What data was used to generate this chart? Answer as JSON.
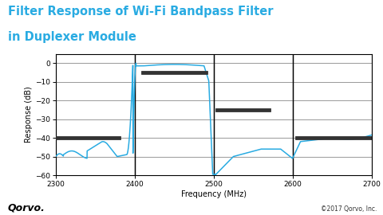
{
  "title_line1": "Filter Response of Wi-Fi Bandpass Filter",
  "title_line2": "in Duplexer Module",
  "title_color": "#29ABE2",
  "title_fontsize": 10.5,
  "xlabel": "Frequency (MHz)",
  "ylabel": "Response (dB)",
  "xlim": [
    2300,
    2700
  ],
  "ylim": [
    -60,
    5
  ],
  "xticks": [
    2300,
    2400,
    2500,
    2600,
    2700
  ],
  "yticks": [
    0,
    -10,
    -20,
    -30,
    -40,
    -50,
    -60
  ],
  "line_color": "#29ABE2",
  "vertical_lines": [
    2400,
    2500,
    2600
  ],
  "spec_bars": [
    {
      "x0": 2300,
      "x1": 2382,
      "y": -40
    },
    {
      "x0": 2408,
      "x1": 2492,
      "y": -5
    },
    {
      "x0": 2502,
      "x1": 2572,
      "y": -25
    },
    {
      "x0": 2603,
      "x1": 2700,
      "y": -40
    }
  ],
  "bg_color": "#ffffff",
  "grid_color_h": "#888888",
  "grid_color_v": "#000000",
  "copyright": "©2017 Qorvo, Inc.",
  "logo_text": "Qorvo."
}
